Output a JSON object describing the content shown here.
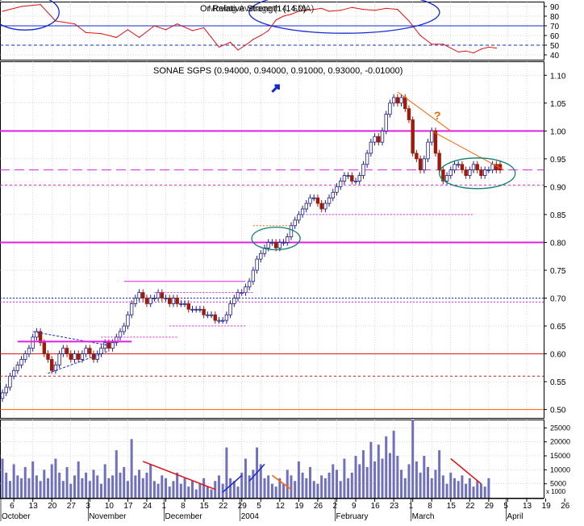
{
  "colors": {
    "background": "#ffffff",
    "frame": "#000000",
    "grid": "#b0b0b0",
    "candle_up": "#1c1c8c",
    "candle_down": "#9e1a0a",
    "rsi_line": "#e01010",
    "magenta_levels": "#e020e0",
    "red_levels": "#e01010",
    "orange_level": "#ff6000",
    "blue_annotation": "#1428d0",
    "volume_bar": "#7070c0",
    "ellipse": "#108070"
  },
  "chart_data": [
    {
      "type": "line",
      "panel": "rsi",
      "title": "Or Relative Strength (14.0)",
      "title_overlay": "Moving Average (14, SMA)",
      "yticks": [
        40,
        50,
        60,
        70,
        80,
        90
      ],
      "ylim": [
        35,
        95
      ],
      "grid": true,
      "x_index_range": [
        0,
        133
      ],
      "series": [
        {
          "x": [
            0,
            5,
            10,
            14,
            19,
            22,
            26,
            30,
            33,
            36,
            40,
            43,
            46,
            50,
            53,
            55,
            57,
            60,
            62,
            64,
            66,
            68,
            70,
            72,
            74,
            76,
            78,
            80,
            82,
            84,
            86,
            89,
            92,
            95,
            98,
            101,
            104,
            107,
            110,
            113,
            116,
            118,
            120,
            122,
            124,
            126,
            128,
            130
          ],
          "values": [
            85,
            90,
            92,
            75,
            72,
            63,
            62,
            58,
            66,
            58,
            70,
            66,
            72,
            65,
            68,
            58,
            48,
            53,
            45,
            50,
            56,
            60,
            65,
            76,
            80,
            82,
            85,
            86,
            87,
            88,
            85,
            86,
            89,
            87,
            86,
            88,
            87,
            75,
            60,
            51,
            51,
            47,
            43,
            44,
            42,
            46,
            48,
            47
          ]
        }
      ],
      "levels": [
        {
          "value": 70,
          "style": "solid",
          "color": "#1428d0"
        },
        {
          "value": 50,
          "style": "dashed",
          "color": "#1428d0"
        }
      ],
      "annotations": [
        "ellipse around left overbought peak",
        "ellipse around mid-chart overbought plateau"
      ]
    },
    {
      "type": "candlestick",
      "panel": "price",
      "title": "SONAE SGPS (0.94000, 0.94000, 0.91000, 0.93000, -0.01000)",
      "yticks": [
        0.5,
        0.55,
        0.6,
        0.65,
        0.7,
        0.75,
        0.8,
        0.85,
        0.9,
        0.95,
        1.0,
        1.05,
        1.1
      ],
      "ylim": [
        0.485,
        1.125
      ],
      "grid": true,
      "x_index_range": [
        0,
        133
      ],
      "closes": [
        0.53,
        0.54,
        0.56,
        0.57,
        0.58,
        0.59,
        0.6,
        0.61,
        0.63,
        0.64,
        0.62,
        0.6,
        0.59,
        0.57,
        0.58,
        0.6,
        0.61,
        0.6,
        0.59,
        0.6,
        0.59,
        0.6,
        0.61,
        0.6,
        0.59,
        0.6,
        0.61,
        0.62,
        0.61,
        0.62,
        0.63,
        0.64,
        0.65,
        0.67,
        0.69,
        0.7,
        0.71,
        0.7,
        0.69,
        0.7,
        0.7,
        0.71,
        0.7,
        0.7,
        0.69,
        0.7,
        0.69,
        0.69,
        0.69,
        0.68,
        0.68,
        0.68,
        0.68,
        0.67,
        0.67,
        0.67,
        0.66,
        0.66,
        0.66,
        0.67,
        0.69,
        0.7,
        0.71,
        0.71,
        0.72,
        0.73,
        0.75,
        0.77,
        0.78,
        0.79,
        0.8,
        0.8,
        0.79,
        0.8,
        0.8,
        0.81,
        0.83,
        0.84,
        0.85,
        0.86,
        0.87,
        0.88,
        0.88,
        0.87,
        0.86,
        0.87,
        0.88,
        0.89,
        0.9,
        0.91,
        0.92,
        0.92,
        0.91,
        0.91,
        0.92,
        0.94,
        0.96,
        0.98,
        0.99,
        0.98,
        1.0,
        1.03,
        1.05,
        1.06,
        1.05,
        1.06,
        1.04,
        1.02,
        0.96,
        0.95,
        0.93,
        0.95,
        0.98,
        1.0,
        0.96,
        0.93,
        0.91,
        0.92,
        0.93,
        0.94,
        0.94,
        0.93,
        0.92,
        0.93,
        0.94,
        0.93,
        0.92,
        0.93,
        0.93,
        0.94,
        0.93,
        0.93
      ],
      "last": {
        "open": 0.94,
        "high": 0.94,
        "low": 0.91,
        "close": 0.93,
        "change": -0.01
      },
      "levels": [
        {
          "value": 1.0,
          "color": "#e020e0",
          "style": "solid"
        },
        {
          "value": 0.93,
          "color": "#e020e0",
          "style": "dashed"
        },
        {
          "value": 0.903,
          "color": "#e020e0",
          "style": "dashed"
        },
        {
          "value": 0.8,
          "color": "#e020e0",
          "style": "solid"
        },
        {
          "value": 0.7,
          "color": "#1428d0",
          "style": "dotted"
        },
        {
          "value": 0.693,
          "color": "#e020e0",
          "style": "dotted"
        },
        {
          "value": 0.6,
          "color": "#e01010",
          "style": "solid"
        },
        {
          "value": 0.56,
          "color": "#e01010",
          "style": "dashed"
        },
        {
          "value": 0.5,
          "color": "#ff6000",
          "style": "solid"
        }
      ],
      "question_mark": "?"
    },
    {
      "type": "bar",
      "panel": "volume",
      "yticks": [
        5000,
        10000,
        15000,
        20000,
        25000
      ],
      "ytick_labels": [
        "5000",
        "10000",
        "15000",
        "20000",
        "25000"
      ],
      "ylim": [
        0,
        28000
      ],
      "y_axis_note": "x 1000",
      "values": [
        14000,
        9000,
        6000,
        12000,
        8000,
        7000,
        11000,
        7000,
        13000,
        8000,
        6000,
        10000,
        7000,
        12000,
        14000,
        9000,
        6000,
        11000,
        5000,
        8000,
        13000,
        7000,
        9000,
        6000,
        10000,
        8000,
        5000,
        12000,
        7000,
        8000,
        17000,
        9000,
        11000,
        6000,
        21000,
        8000,
        10000,
        7000,
        9000,
        12000,
        6000,
        5000,
        8000,
        7000,
        4000,
        6000,
        9000,
        5000,
        7000,
        4000,
        6000,
        3000,
        5000,
        7000,
        4000,
        3000,
        6000,
        8000,
        5000,
        18000,
        7000,
        6000,
        4000,
        9000,
        14000,
        8000,
        10000,
        18000,
        12000,
        7000,
        8000,
        5000,
        4000,
        7000,
        5000,
        10000,
        8000,
        6000,
        13000,
        9000,
        7000,
        11000,
        6000,
        5000,
        8000,
        7000,
        9000,
        12000,
        10000,
        6000,
        14000,
        7000,
        9000,
        15000,
        12000,
        17000,
        11000,
        20000,
        13000,
        19000,
        14000,
        22000,
        16000,
        24000,
        15000,
        10000,
        7000,
        12000,
        28000,
        13000,
        9000,
        15000,
        11000,
        7000,
        10000,
        17000,
        8000,
        5000,
        9000,
        7000,
        6000,
        8000,
        5000,
        7000,
        4000,
        6000,
        5000,
        4000,
        7000
      ]
    }
  ],
  "x_axis": {
    "day_ticks": [
      {
        "label": "6",
        "x": 3
      },
      {
        "label": "13",
        "x": 8
      },
      {
        "label": "20",
        "x": 13
      },
      {
        "label": "27",
        "x": 18
      },
      {
        "label": "3",
        "x": 23
      },
      {
        "label": "10",
        "x": 28
      },
      {
        "label": "17",
        "x": 33
      },
      {
        "label": "24",
        "x": 38
      },
      {
        "label": "1",
        "x": 43
      },
      {
        "label": "8",
        "x": 48
      },
      {
        "label": "15",
        "x": 53
      },
      {
        "label": "22",
        "x": 58
      },
      {
        "label": "29",
        "x": 63
      },
      {
        "label": "5",
        "x": 68
      },
      {
        "label": "12",
        "x": 73
      },
      {
        "label": "19",
        "x": 78
      },
      {
        "label": "26",
        "x": 83
      },
      {
        "label": "2",
        "x": 88
      },
      {
        "label": "9",
        "x": 93
      },
      {
        "label": "16",
        "x": 98
      },
      {
        "label": "23",
        "x": 103
      },
      {
        "label": "1",
        "x": 108
      },
      {
        "label": "8",
        "x": 113
      },
      {
        "label": "15",
        "x": 118
      },
      {
        "label": "22",
        "x": 123
      },
      {
        "label": "29",
        "x": 128
      },
      {
        "label": "5",
        "x": 133
      },
      {
        "label": "13",
        "x": 138
      },
      {
        "label": "19",
        "x": 143
      },
      {
        "label": "26",
        "x": 148
      }
    ],
    "month_labels": [
      {
        "label": "October",
        "x": 0
      },
      {
        "label": "November",
        "x": 23
      },
      {
        "label": "December",
        "x": 43
      },
      {
        "label": "2004",
        "x": 63
      },
      {
        "label": "February",
        "x": 88
      },
      {
        "label": "March",
        "x": 108
      },
      {
        "label": "April",
        "x": 133
      }
    ]
  }
}
